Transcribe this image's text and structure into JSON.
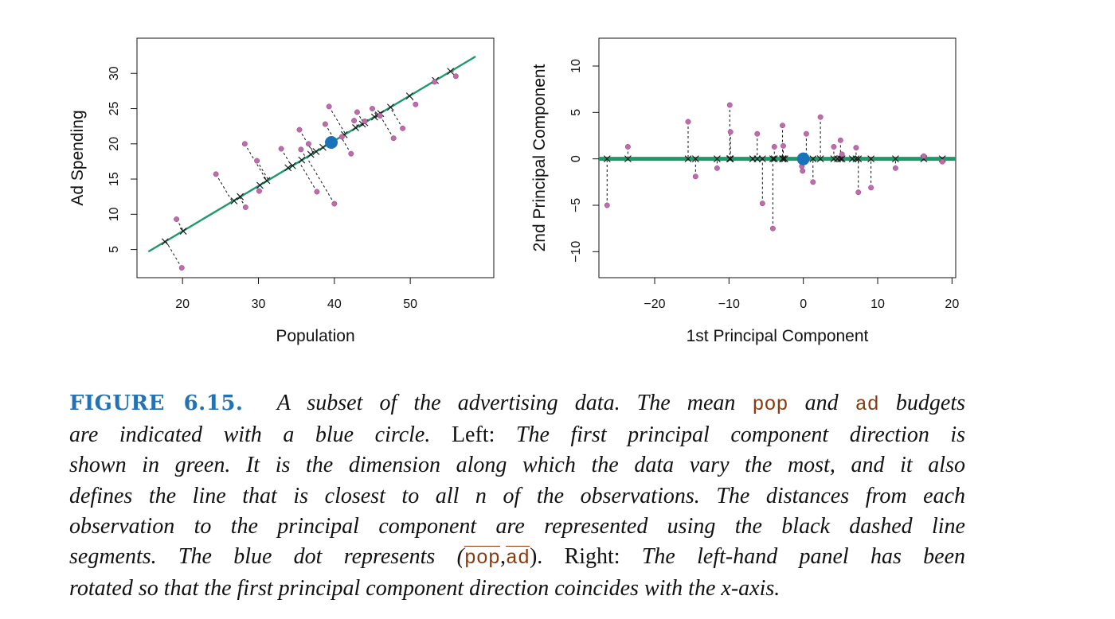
{
  "colors": {
    "figure_label": "#2472b4",
    "code": "#8b3a0e",
    "pc_line": "#1e9a6a",
    "points": "#c06bac",
    "mean_point": "#1a72b8",
    "text": "#111111"
  },
  "chart_data": [
    {
      "type": "scatter",
      "panel": "left",
      "xlabel": "Population",
      "ylabel": "Ad Spending",
      "xlim": [
        14,
        61
      ],
      "ylim": [
        1,
        35
      ],
      "xticks": [
        "20",
        "30",
        "40",
        "50"
      ],
      "xtick_values": [
        20,
        30,
        40,
        50
      ],
      "yticks": [
        "5",
        "10",
        "15",
        "20",
        "25",
        "30"
      ],
      "ytick_values": [
        5,
        10,
        15,
        20,
        25,
        30
      ],
      "grid": false,
      "pc_line": {
        "x": [
          15.5,
          58.6
        ],
        "y": [
          4.7,
          32.4
        ]
      },
      "mean_point": {
        "x": 39.6,
        "y": 20.2
      },
      "points": [
        [
          19.2,
          9.3
        ],
        [
          19.9,
          2.4
        ],
        [
          24.4,
          15.7
        ],
        [
          28.2,
          20.0
        ],
        [
          28.3,
          11.0
        ],
        [
          29.8,
          17.6
        ],
        [
          30.1,
          13.3
        ],
        [
          33.0,
          19.3
        ],
        [
          35.4,
          22.0
        ],
        [
          35.6,
          19.2
        ],
        [
          36.6,
          20.0
        ],
        [
          37.7,
          13.2
        ],
        [
          39.3,
          25.3
        ],
        [
          40.0,
          11.5
        ],
        [
          41.0,
          21.0
        ],
        [
          42.2,
          18.6
        ],
        [
          42.6,
          23.3
        ],
        [
          43.0,
          24.5
        ],
        [
          44.0,
          23.2
        ],
        [
          45.0,
          25.0
        ],
        [
          46.0,
          24.0
        ],
        [
          47.8,
          20.8
        ],
        [
          49.0,
          22.2
        ],
        [
          50.7,
          25.6
        ],
        [
          53.2,
          28.8
        ],
        [
          56.0,
          29.6
        ],
        [
          38.8,
          22.8
        ]
      ],
      "projections": [
        [
          17.7,
          6.1
        ],
        [
          20.1,
          7.6
        ],
        [
          26.8,
          11.9
        ],
        [
          27.6,
          12.5
        ],
        [
          30.2,
          14.1
        ],
        [
          31.1,
          14.8
        ],
        [
          33.9,
          16.6
        ],
        [
          34.5,
          16.9
        ],
        [
          35.7,
          17.7
        ],
        [
          36.9,
          18.5
        ],
        [
          37.6,
          18.9
        ],
        [
          38.5,
          19.5
        ],
        [
          41.3,
          21.3
        ],
        [
          42.8,
          22.3
        ],
        [
          43.7,
          22.8
        ],
        [
          44.0,
          23.0
        ],
        [
          45.3,
          23.8
        ],
        [
          45.8,
          24.1
        ],
        [
          46.1,
          24.3
        ],
        [
          47.4,
          25.2
        ],
        [
          49.9,
          26.8
        ],
        [
          53.3,
          29.0
        ],
        [
          55.3,
          30.3
        ]
      ]
    },
    {
      "type": "scatter",
      "panel": "right",
      "xlabel": "1st Principal Component",
      "ylabel": "2nd Principal Component",
      "xlim": [
        -27.5,
        20.5
      ],
      "ylim": [
        -12.8,
        13.0
      ],
      "xticks": [
        "−20",
        "−10",
        "0",
        "10",
        "20"
      ],
      "xtick_values": [
        -20,
        -10,
        0,
        10,
        20
      ],
      "yticks": [
        "−10",
        "−5",
        "0",
        "5",
        "10"
      ],
      "ytick_values": [
        -10,
        -5,
        0,
        5,
        10
      ],
      "grid": false,
      "pc_line": {
        "y": 0
      },
      "mean_point": {
        "x": 0,
        "y": 0
      },
      "points": [
        [
          -26.4,
          -5.0
        ],
        [
          -23.6,
          1.3
        ],
        [
          -15.5,
          4.0
        ],
        [
          -14.5,
          -1.9
        ],
        [
          -11.6,
          -1.0
        ],
        [
          -9.9,
          5.8
        ],
        [
          -9.8,
          2.9
        ],
        [
          -6.2,
          2.7
        ],
        [
          -5.5,
          -4.8
        ],
        [
          -4.1,
          -7.5
        ],
        [
          -3.9,
          1.3
        ],
        [
          -2.8,
          3.6
        ],
        [
          -2.7,
          1.4
        ],
        [
          -0.1,
          -1.3
        ],
        [
          0.4,
          2.7
        ],
        [
          1.3,
          -2.5
        ],
        [
          2.3,
          4.5
        ],
        [
          4.1,
          1.3
        ],
        [
          5.0,
          2.0
        ],
        [
          5.2,
          0.5
        ],
        [
          7.1,
          1.2
        ],
        [
          7.4,
          -3.6
        ],
        [
          9.1,
          -3.1
        ],
        [
          12.4,
          -1.0
        ],
        [
          16.2,
          0.3
        ],
        [
          18.7,
          -0.3
        ],
        [
          -0.2,
          -0.8
        ]
      ],
      "projections": [
        -26.4,
        -23.6,
        -15.5,
        -14.5,
        -11.6,
        -9.9,
        -9.8,
        -6.8,
        -6.2,
        -5.5,
        -4.1,
        -3.9,
        -2.8,
        -2.7,
        -2.5,
        1.3,
        2.3,
        4.1,
        4.6,
        5.0,
        5.2,
        6.6,
        7.1,
        7.4,
        9.1,
        12.4,
        16.2,
        18.7
      ]
    }
  ],
  "caption": {
    "figure_label": "FIGURE 6.15.",
    "line1_a": "A subset of the advertising data. The mean",
    "code_pop": "pop",
    "line1_and": "and",
    "code_ad": "ad",
    "line1_b": "budgets",
    "line2_a": "are indicated with a blue circle.",
    "left_label": "Left:",
    "line2_b": "The first principal component direction is",
    "line3": "shown in green. It is the dimension along which the data vary the most, and it also",
    "line4": "defines the line that is closest to all n of the observations. The distances from each",
    "line5": "observation to the principal component are represented using the black dashed line",
    "line6_a": "segments. The blue dot represents (",
    "code_pop_bar": "pop",
    "comma": ",",
    "code_ad_bar": "ad",
    "line6_b": ").",
    "right_label": "Right:",
    "line6_c": "The left-hand panel has been",
    "line7": "rotated so that the first principal component direction coincides with the x-axis."
  }
}
